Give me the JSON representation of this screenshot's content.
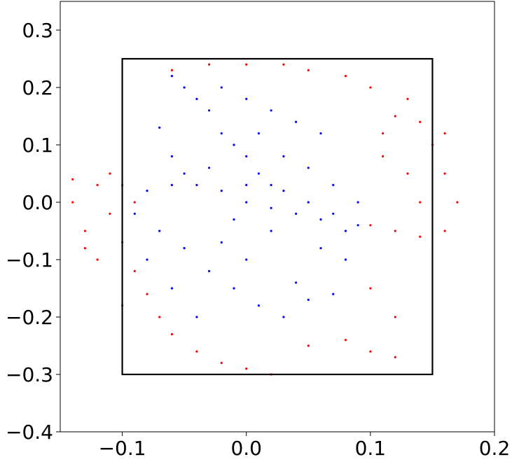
{
  "chart_data": {
    "type": "scatter",
    "title": "",
    "xlabel": "",
    "ylabel": "",
    "xlim": [
      -0.15,
      0.2
    ],
    "ylim": [
      -0.4,
      0.35
    ],
    "xticks": [
      -0.1,
      0.0,
      0.1,
      0.2
    ],
    "xtick_labels": [
      "−0.1",
      "0.0",
      "0.1",
      "0.2"
    ],
    "yticks": [
      -0.4,
      -0.3,
      -0.2,
      -0.1,
      0.0,
      0.1,
      0.2,
      0.3
    ],
    "ytick_labels": [
      "−0.4",
      "−0.3",
      "−0.2",
      "−0.1",
      "0.0",
      "0.1",
      "0.2",
      "0.3"
    ],
    "grid": false,
    "legend": "none",
    "box": {
      "x": [
        -0.1,
        0.15
      ],
      "y": [
        -0.3,
        0.25
      ],
      "color": "#000000"
    },
    "series": [
      {
        "color": "#0000ff",
        "points": [
          [
            -0.05,
            0.2
          ],
          [
            -0.04,
            0.18
          ],
          [
            -0.03,
            0.16
          ],
          [
            -0.02,
            0.12
          ],
          [
            -0.01,
            0.1
          ],
          [
            0.0,
            0.08
          ],
          [
            0.01,
            0.05
          ],
          [
            0.02,
            0.03
          ],
          [
            0.03,
            0.02
          ],
          [
            0.05,
            0.0
          ],
          [
            0.07,
            -0.02
          ],
          [
            0.09,
            -0.04
          ],
          [
            -0.08,
            0.02
          ],
          [
            -0.06,
            0.03
          ],
          [
            -0.04,
            0.03
          ],
          [
            -0.02,
            0.02
          ],
          [
            0.0,
            0.0
          ],
          [
            0.02,
            -0.01
          ],
          [
            0.04,
            -0.02
          ],
          [
            0.06,
            -0.03
          ],
          [
            -0.09,
            -0.02
          ],
          [
            -0.07,
            -0.05
          ],
          [
            -0.05,
            -0.08
          ],
          [
            -0.03,
            -0.12
          ],
          [
            -0.01,
            -0.15
          ],
          [
            0.01,
            -0.18
          ],
          [
            0.03,
            -0.2
          ],
          [
            0.04,
            -0.14
          ],
          [
            0.05,
            -0.17
          ],
          [
            0.06,
            0.12
          ],
          [
            0.04,
            0.14
          ],
          [
            0.02,
            0.16
          ],
          [
            0.0,
            0.18
          ],
          [
            -0.02,
            0.2
          ],
          [
            -0.06,
            0.22
          ],
          [
            -0.07,
            0.13
          ],
          [
            -0.06,
            0.08
          ],
          [
            -0.05,
            0.05
          ],
          [
            0.03,
            0.08
          ],
          [
            0.06,
            -0.08
          ],
          [
            0.08,
            -0.1
          ],
          [
            0.07,
            -0.16
          ],
          [
            -0.08,
            -0.1
          ],
          [
            -0.06,
            -0.15
          ],
          [
            -0.04,
            -0.2
          ],
          [
            -0.02,
            -0.07
          ],
          [
            0.0,
            -0.1
          ],
          [
            0.02,
            -0.05
          ],
          [
            -0.03,
            0.06
          ],
          [
            0.01,
            0.12
          ],
          [
            0.05,
            0.06
          ],
          [
            0.07,
            0.03
          ],
          [
            0.09,
            0.0
          ],
          [
            0.08,
            -0.05
          ],
          [
            0.0,
            0.03
          ],
          [
            -0.01,
            -0.03
          ]
        ]
      },
      {
        "color": "#ff0000",
        "points": [
          [
            -0.14,
            0.04
          ],
          [
            -0.14,
            0.0
          ],
          [
            -0.13,
            -0.05
          ],
          [
            -0.12,
            -0.1
          ],
          [
            -0.11,
            0.05
          ],
          [
            -0.12,
            0.03
          ],
          [
            -0.11,
            -0.02
          ],
          [
            -0.1,
            -0.07
          ],
          [
            -0.09,
            -0.12
          ],
          [
            -0.08,
            -0.16
          ],
          [
            -0.07,
            -0.2
          ],
          [
            -0.06,
            -0.23
          ],
          [
            -0.04,
            -0.26
          ],
          [
            -0.02,
            -0.28
          ],
          [
            0.0,
            -0.29
          ],
          [
            0.02,
            -0.3
          ],
          [
            0.05,
            -0.25
          ],
          [
            0.08,
            -0.24
          ],
          [
            0.1,
            -0.26
          ],
          [
            0.12,
            -0.27
          ],
          [
            0.12,
            -0.2
          ],
          [
            0.1,
            -0.15
          ],
          [
            0.13,
            0.05
          ],
          [
            0.14,
            0.0
          ],
          [
            0.15,
            0.1
          ],
          [
            0.16,
            0.05
          ],
          [
            0.17,
            0.0
          ],
          [
            0.16,
            -0.05
          ],
          [
            0.14,
            -0.06
          ],
          [
            0.12,
            -0.05
          ],
          [
            0.1,
            -0.04
          ],
          [
            0.12,
            0.15
          ],
          [
            0.1,
            0.2
          ],
          [
            0.08,
            0.22
          ],
          [
            0.05,
            0.23
          ],
          [
            0.03,
            0.24
          ],
          [
            0.0,
            0.24
          ],
          [
            -0.03,
            0.24
          ],
          [
            -0.06,
            0.23
          ],
          [
            0.11,
            0.12
          ],
          [
            0.14,
            0.14
          ],
          [
            0.13,
            0.18
          ],
          [
            0.11,
            0.08
          ],
          [
            0.16,
            0.12
          ],
          [
            -0.13,
            -0.08
          ],
          [
            -0.1,
            -0.18
          ],
          [
            -0.09,
            0.0
          ],
          [
            -0.1,
            0.03
          ]
        ]
      }
    ]
  }
}
